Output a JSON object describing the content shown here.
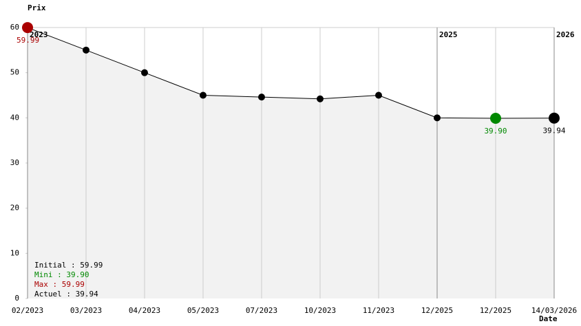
{
  "chart_data": {
    "type": "line",
    "y_label": "Prix",
    "x_label": "Date",
    "categories": [
      "02/2023",
      "03/2023",
      "04/2023",
      "05/2023",
      "07/2023",
      "10/2023",
      "11/2023",
      "12/2025",
      "12/2025",
      "14/03/2026"
    ],
    "series": [
      {
        "color": "#000000",
        "values": [
          59.99,
          55.0,
          50.0,
          45.0,
          44.6,
          44.2,
          45.0,
          40.0,
          39.9,
          39.94
        ],
        "value_labels": [
          "59.99",
          null,
          null,
          null,
          null,
          null,
          null,
          null,
          "39.90",
          "39.94"
        ],
        "marker_colors": [
          "#aa0000",
          "#000000",
          "#000000",
          "#000000",
          "#000000",
          "#000000",
          "#000000",
          "#000000",
          "#008800",
          "#000000"
        ]
      }
    ],
    "ylim": [
      0,
      60
    ],
    "yticks": [
      0,
      10,
      20,
      30,
      40,
      50,
      60
    ],
    "year_markers": [
      "2023",
      "2025",
      "2026"
    ],
    "area_color": "#f2f2f2",
    "summary": [
      {
        "text": "Initial : 59.99",
        "color": "#000000"
      },
      {
        "text": "Mini : 39.90",
        "color": "#008800"
      },
      {
        "text": "Max : 59.99",
        "color": "#aa0000"
      },
      {
        "text": "Actuel : 39.94",
        "color": "#000000"
      }
    ]
  }
}
